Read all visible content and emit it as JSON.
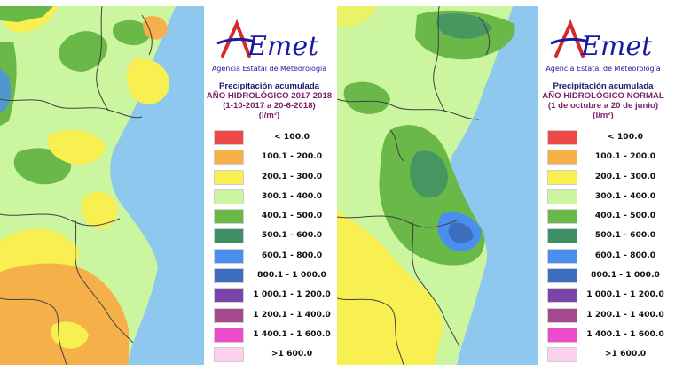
{
  "logo_text": "AEmet",
  "panels": [
    {
      "agency": "Agencia Estatal de Meteorología",
      "title_line1": "Precipitación acumulada",
      "title_line2": "AÑO HIDROLÓGICO 2017-2018",
      "title_line3": "(1-10-2017 a 20-6-2018)",
      "title_line4": "(l/m²)"
    },
    {
      "agency": "Agencia Estatal de Meteorología",
      "title_line1": "Precipitación acumulada",
      "title_line2": "AÑO HIDROLÓGICO NORMAL",
      "title_line3": "(1 de octubre a 20 de junio)",
      "title_line4": "(l/m²)"
    }
  ],
  "legend": [
    {
      "label": "< 100.0",
      "color": "#f04848"
    },
    {
      "label": "100.1 - 200.0",
      "color": "#f5b04a"
    },
    {
      "label": "200.1 - 300.0",
      "color": "#f8f050"
    },
    {
      "label": "300.1 - 400.0",
      "color": "#ccf5a0"
    },
    {
      "label": "400.1 - 500.0",
      "color": "#6ab848"
    },
    {
      "label": "500.1 - 600.0",
      "color": "#3f8f66"
    },
    {
      "label": "600.1 - 800.0",
      "color": "#4a8ef0"
    },
    {
      "label": "800.1 - 1 000.0",
      "color": "#3f6ec0"
    },
    {
      "label": "1 000.1 - 1 200.0",
      "color": "#7b44a8"
    },
    {
      "label": "1 200.1 - 1 400.0",
      "color": "#a44a8c"
    },
    {
      "label": "1 400.1 - 1 600.0",
      "color": "#ec4ccc"
    },
    {
      "label": ">1 600.0",
      "color": "#fcd0ec"
    }
  ],
  "colors": {
    "sea": "#8ec8ee",
    "brand_blue": "#1a1aa0",
    "brand_red": "#d4282b",
    "title_purple": "#7a1f6a",
    "border_line": "#404040"
  }
}
